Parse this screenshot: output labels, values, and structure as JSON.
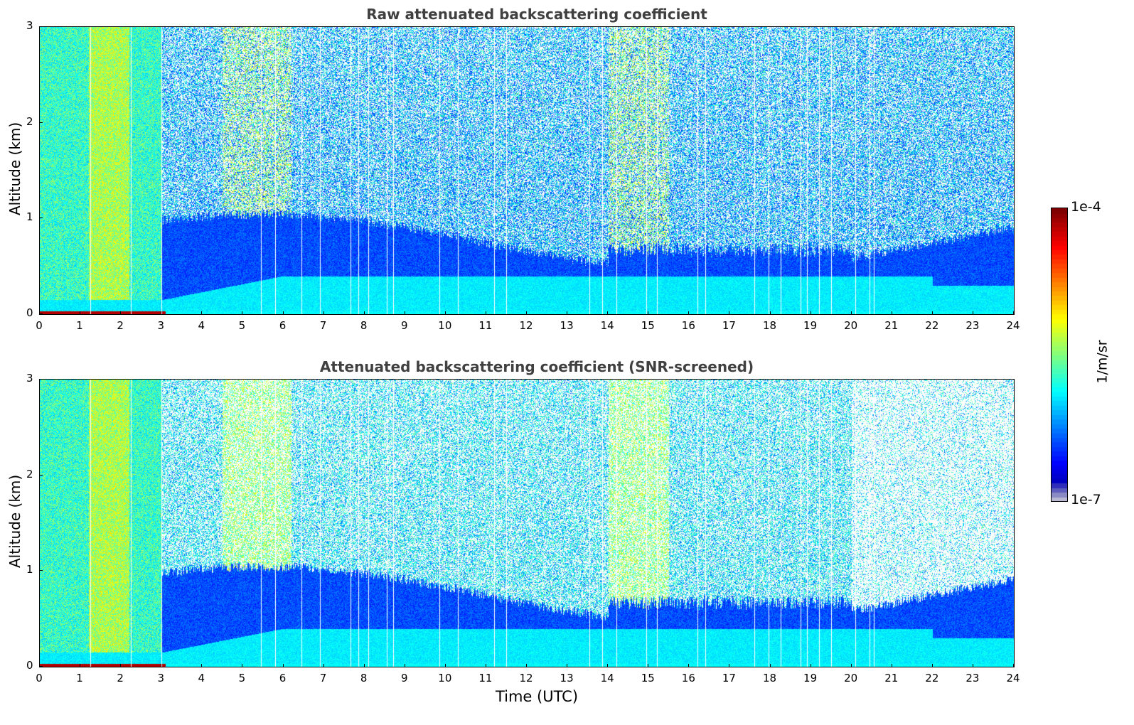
{
  "chart_data": [
    {
      "type": "heatmap",
      "title": "Raw attenuated backscattering coefficient",
      "xlabel": "",
      "ylabel": "Altitude (km)",
      "xlim": [
        0,
        24
      ],
      "ylim": [
        0,
        3
      ],
      "x_ticks": [
        "0",
        "1",
        "2",
        "3",
        "4",
        "5",
        "6",
        "7",
        "8",
        "9",
        "10",
        "11",
        "12",
        "13",
        "14",
        "15",
        "16",
        "17",
        "18",
        "19",
        "20",
        "21",
        "22",
        "23",
        "24"
      ],
      "y_ticks": [
        "0",
        "1",
        "2",
        "3"
      ],
      "screening": "none"
    },
    {
      "type": "heatmap",
      "title": "Attenuated backscattering coefficient (SNR-screened)",
      "xlabel": "Time (UTC)",
      "ylabel": "Altitude (km)",
      "xlim": [
        0,
        24
      ],
      "ylim": [
        0,
        3
      ],
      "x_ticks": [
        "0",
        "1",
        "2",
        "3",
        "4",
        "5",
        "6",
        "7",
        "8",
        "9",
        "10",
        "11",
        "12",
        "13",
        "14",
        "15",
        "16",
        "17",
        "18",
        "19",
        "20",
        "21",
        "22",
        "23",
        "24"
      ],
      "y_ticks": [
        "0",
        "1",
        "2",
        "3"
      ],
      "screening": "SNR"
    }
  ],
  "colorbar": {
    "label": "1/m/sr",
    "min_label": "1e-7",
    "max_label": "1e-4",
    "scale": "log",
    "colormap": "jet"
  }
}
